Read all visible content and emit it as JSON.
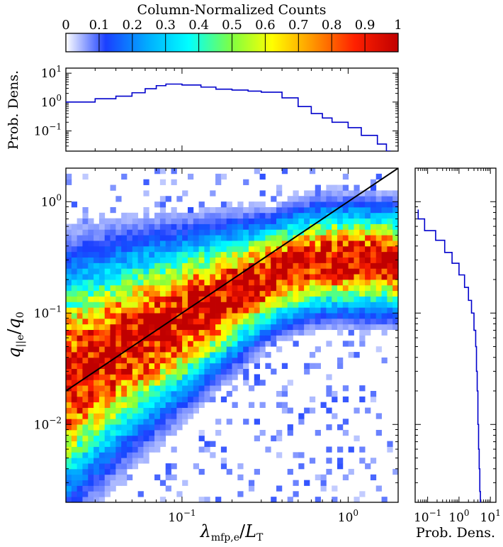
{
  "chart_data": [
    {
      "type": "colorbar",
      "title": "Column-Normalized Counts",
      "range": [
        0,
        1
      ],
      "ticks": [
        "0",
        "0.1",
        "0.2",
        "0.3",
        "0.4",
        "0.5",
        "0.6",
        "0.7",
        "0.8",
        "0.9",
        "1"
      ],
      "colormap": [
        "#ffffff",
        "#1a3fff",
        "#00b0ff",
        "#00ffff",
        "#80ff40",
        "#ffff00",
        "#ff9000",
        "#ff2000",
        "#c00000"
      ]
    },
    {
      "type": "line",
      "ylabel": "Prob. Dens.",
      "xscale": "log",
      "yscale": "log",
      "xlim": [
        0.02,
        2
      ],
      "ylim": [
        0.02,
        15
      ],
      "yticks": [
        {
          "v": 0.1,
          "base": "10",
          "exp": "−1"
        },
        {
          "v": 1,
          "base": "10",
          "exp": "0"
        },
        {
          "v": 10,
          "base": "10",
          "exp": "1"
        }
      ],
      "line_color": "#0000cc",
      "x": [
        0.02,
        0.03,
        0.04,
        0.05,
        0.06,
        0.07,
        0.08,
        0.1,
        0.13,
        0.16,
        0.2,
        0.25,
        0.3,
        0.4,
        0.5,
        0.6,
        0.7,
        0.8,
        1.0,
        1.2,
        1.5,
        1.7
      ],
      "y": [
        1.0,
        1.3,
        1.6,
        2.1,
        2.9,
        3.7,
        4.2,
        3.9,
        3.3,
        2.8,
        2.6,
        2.4,
        2.2,
        1.4,
        0.7,
        0.4,
        0.28,
        0.2,
        0.13,
        0.07,
        0.035,
        0.02
      ]
    },
    {
      "type": "heatmap",
      "xlabel_base": "λ",
      "xlabel_sub": "mfp,e",
      "xlabel_mid": "/",
      "xlabel_den": "L",
      "xlabel_den_sub": "T",
      "ylabel_base": "q",
      "ylabel_sub": "||e",
      "ylabel_mid": "/",
      "ylabel_den": "q",
      "ylabel_den_sub": "0",
      "xscale": "log",
      "yscale": "log",
      "xlim": [
        0.02,
        2
      ],
      "ylim": [
        0.002,
        2
      ],
      "xticks": [
        {
          "v": 0.1,
          "base": "10",
          "exp": "−1"
        },
        {
          "v": 1,
          "base": "10",
          "exp": "0"
        }
      ],
      "yticks": [
        {
          "v": 0.01,
          "base": "10",
          "exp": "−2"
        },
        {
          "v": 0.1,
          "base": "10",
          "exp": "−1"
        },
        {
          "v": 1,
          "base": "10",
          "exp": "0"
        }
      ],
      "ridge": {
        "x": [
          0.02,
          0.05,
          0.1,
          0.2,
          0.4,
          0.7,
          1.0,
          2.0
        ],
        "y": [
          0.025,
          0.055,
          0.09,
          0.15,
          0.24,
          0.3,
          0.3,
          0.29
        ]
      },
      "reference_line": {
        "x": [
          0.02,
          2.0
        ],
        "y": [
          0.02,
          2.0
        ],
        "color": "#000000"
      }
    },
    {
      "type": "line",
      "xlabel": "Prob. Dens.",
      "xscale": "log",
      "yscale": "log",
      "xlim": [
        0.04,
        15
      ],
      "ylim": [
        0.002,
        2
      ],
      "xticks": [
        {
          "v": 0.1,
          "base": "10",
          "exp": "−1"
        },
        {
          "v": 1,
          "base": "10",
          "exp": "0"
        },
        {
          "v": 10,
          "base": "10",
          "exp": "1"
        }
      ],
      "line_color": "#0000cc",
      "y": [
        0.85,
        0.7,
        0.55,
        0.45,
        0.35,
        0.28,
        0.22,
        0.17,
        0.13,
        0.1,
        0.07,
        0.05,
        0.03,
        0.02,
        0.01,
        0.006,
        0.004,
        0.0025,
        0.002
      ],
      "x": [
        0.05,
        0.08,
        0.18,
        0.35,
        0.6,
        1.0,
        1.5,
        2.0,
        2.5,
        3.0,
        3.4,
        3.6,
        3.8,
        4.0,
        4.2,
        4.4,
        4.6,
        4.8,
        5.0
      ]
    }
  ]
}
